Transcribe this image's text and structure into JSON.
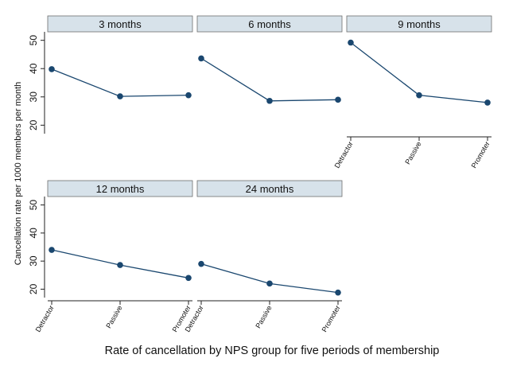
{
  "chart_data": {
    "type": "line",
    "layout": "small-multiples",
    "ylabel": "Cancellation rate per 1000 members per month",
    "xlabel": "Rate of cancellation by NPS group for five periods of membership",
    "categories": [
      "Detractor",
      "Passive",
      "Promoter"
    ],
    "ylim": [
      17,
      53
    ],
    "yticks": [
      20,
      30,
      40,
      50
    ],
    "grid": false,
    "colors": {
      "line": "#1a476f",
      "marker": "#1a476f",
      "strip": "#d7e2ea"
    },
    "panels": [
      {
        "title": "3 months",
        "values": [
          39.8,
          30.2,
          30.6
        ]
      },
      {
        "title": "6 months",
        "values": [
          43.6,
          28.6,
          29.0
        ]
      },
      {
        "title": "9 months",
        "values": [
          49.2,
          30.6,
          28.0
        ]
      },
      {
        "title": "12 months",
        "values": [
          34.0,
          28.6,
          24.0
        ]
      },
      {
        "title": "24 months",
        "values": [
          29.0,
          22.0,
          18.8
        ]
      }
    ]
  }
}
